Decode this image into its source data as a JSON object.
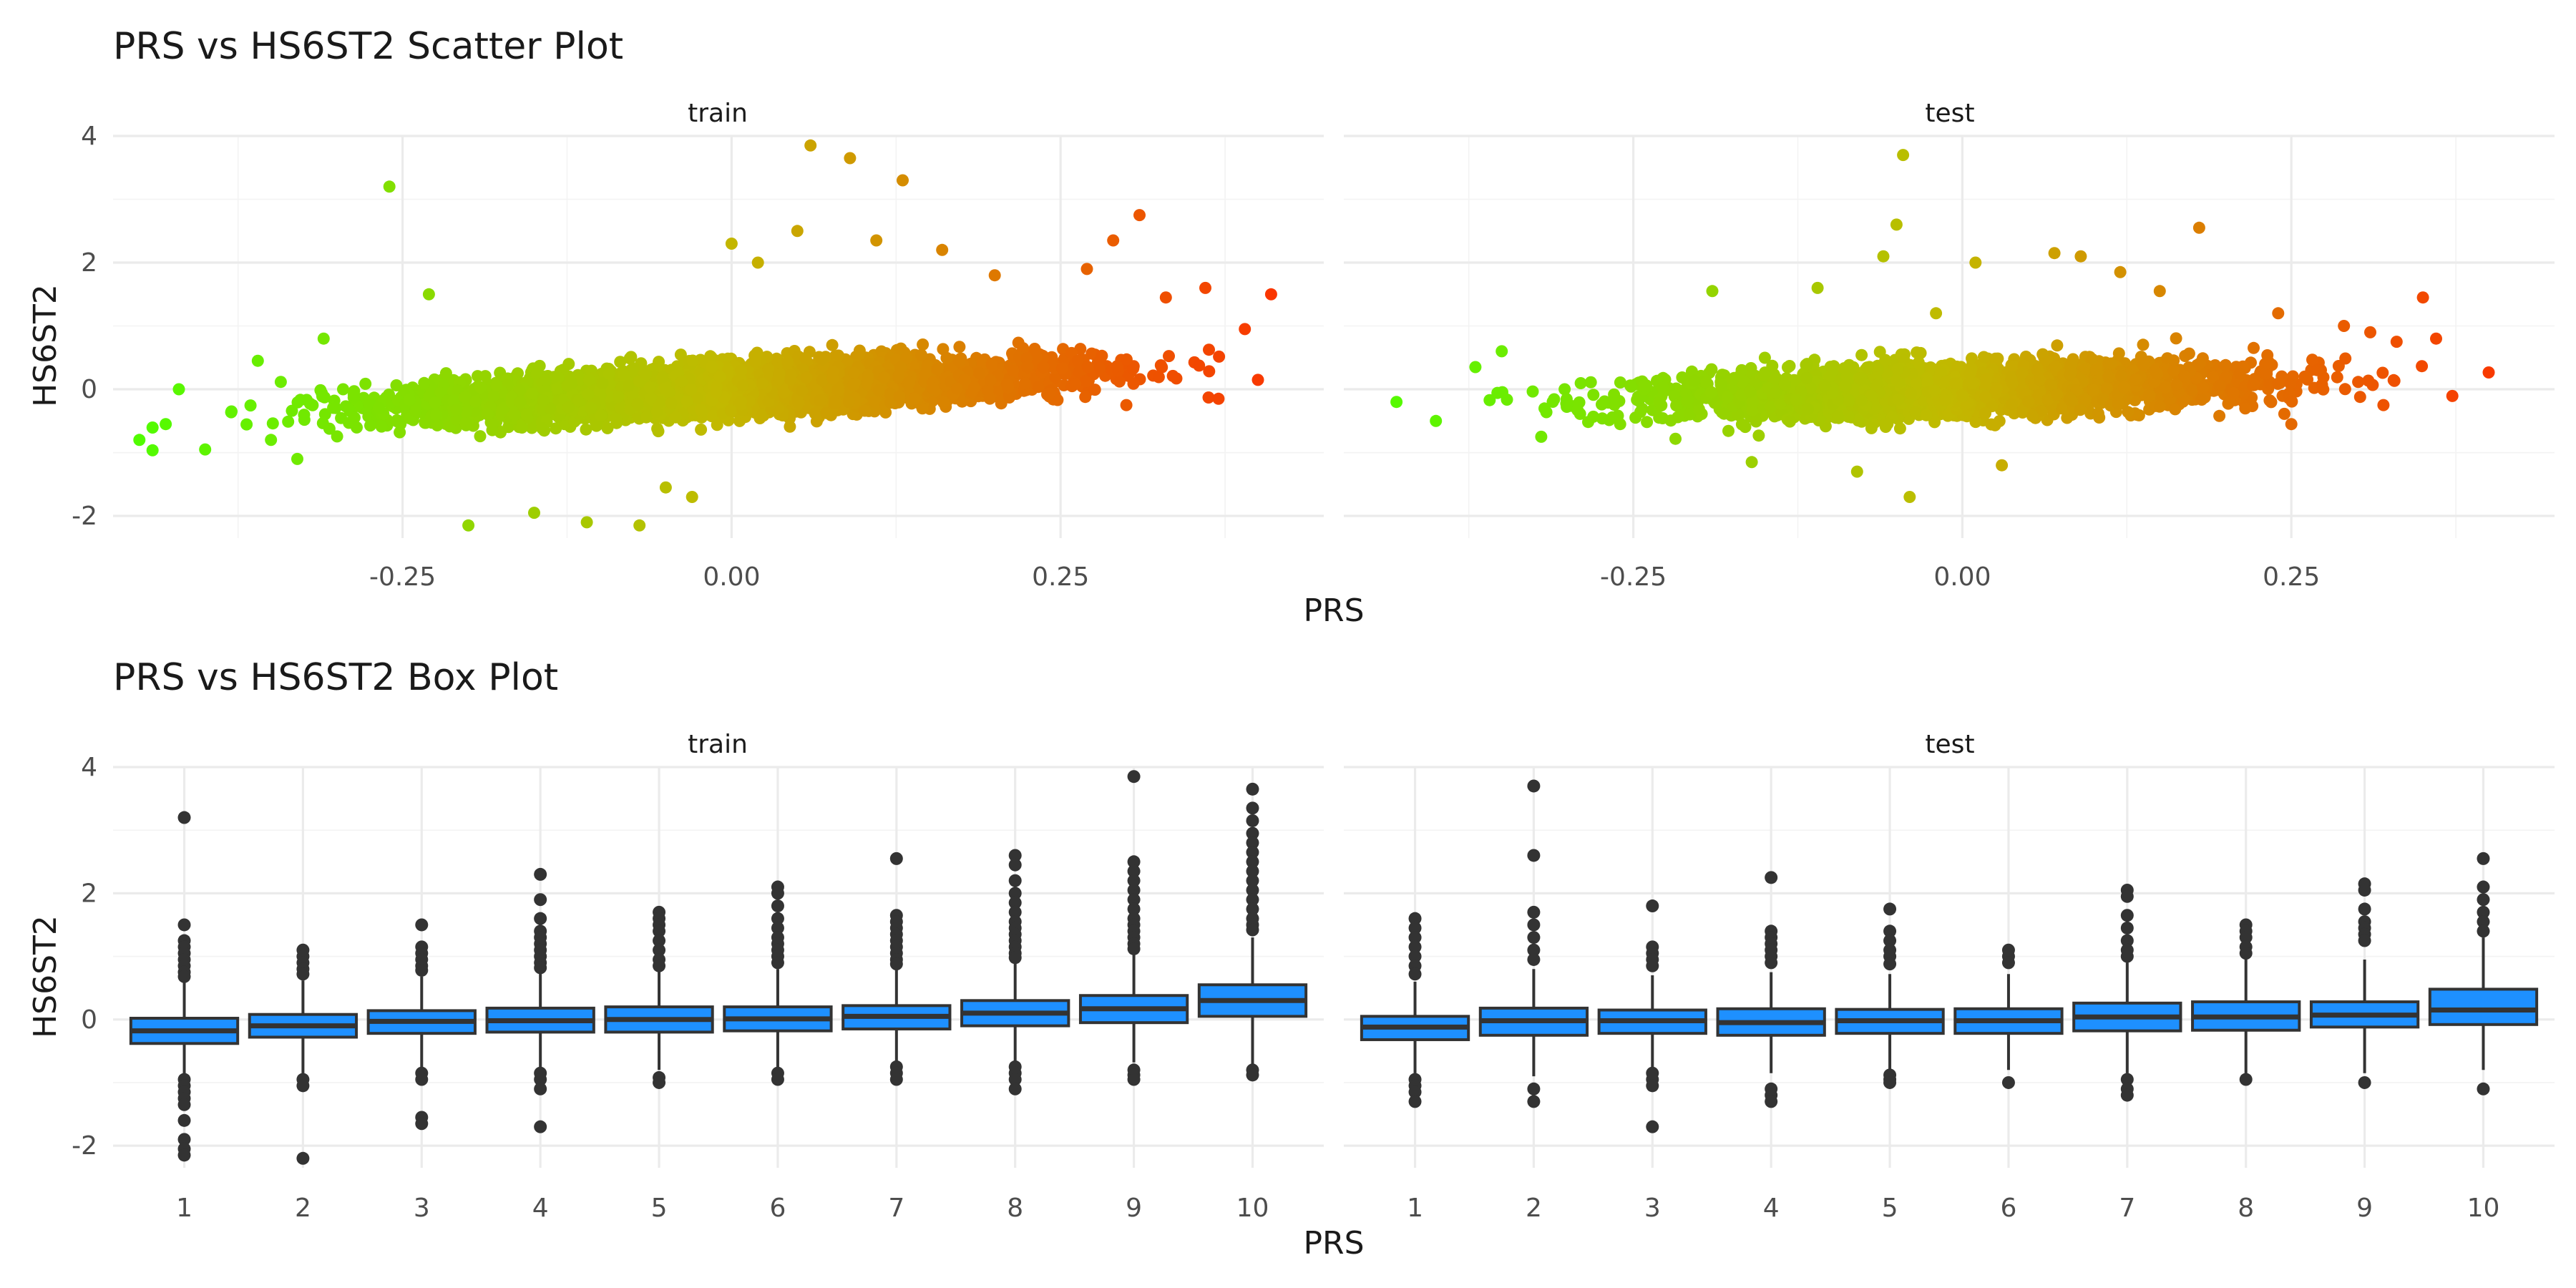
{
  "chart_data": [
    {
      "type": "scatter",
      "title": "PRS vs HS6ST2 Scatter Plot",
      "xlabel": "PRS",
      "ylabel": "HS6ST2",
      "facets": [
        "train",
        "test"
      ],
      "xlim": [
        -0.47,
        0.45
      ],
      "ylim": [
        -2.35,
        4.0
      ],
      "xticks": [
        -0.25,
        0.0,
        0.25
      ],
      "xtick_labels": [
        "-0.25",
        "0.00",
        "0.25"
      ],
      "yticks": [
        -2,
        0,
        2,
        4
      ],
      "ytick_labels": [
        "-2",
        "0",
        "2",
        "4"
      ],
      "grid": true,
      "legend": "none",
      "color_low": "#4cff00",
      "color_mid": "#c2b900",
      "color_high": "#ff2a00",
      "trend": {
        "train": {
          "slope": 2.0,
          "intercept": 0.0,
          "noise": 0.34
        },
        "test": {
          "slope": 1.3,
          "intercept": 0.0,
          "noise": 0.36
        }
      },
      "points": {
        "train": [
          [
            -0.45,
            -0.8
          ],
          [
            -0.43,
            -0.55
          ],
          [
            -0.42,
            0.0
          ],
          [
            -0.4,
            -0.95
          ],
          [
            -0.38,
            -0.35
          ],
          [
            -0.36,
            0.45
          ],
          [
            -0.35,
            -0.8
          ],
          [
            -0.33,
            -1.1
          ],
          [
            -0.31,
            0.8
          ],
          [
            -0.26,
            3.2
          ],
          [
            -0.23,
            1.5
          ],
          [
            -0.2,
            -2.15
          ],
          [
            -0.15,
            -1.95
          ],
          [
            -0.11,
            -2.1
          ],
          [
            -0.07,
            -2.15
          ],
          [
            -0.05,
            -1.55
          ],
          [
            -0.03,
            -1.7
          ],
          [
            0.0,
            2.3
          ],
          [
            0.02,
            2.0
          ],
          [
            0.05,
            2.5
          ],
          [
            0.06,
            3.85
          ],
          [
            0.09,
            3.65
          ],
          [
            0.11,
            2.35
          ],
          [
            0.13,
            3.3
          ],
          [
            0.16,
            2.2
          ],
          [
            0.2,
            1.8
          ],
          [
            0.27,
            1.9
          ],
          [
            0.29,
            2.35
          ],
          [
            0.31,
            2.75
          ],
          [
            0.33,
            1.45
          ],
          [
            0.36,
            1.6
          ],
          [
            0.39,
            0.95
          ],
          [
            0.41,
            1.5
          ],
          [
            0.3,
            -0.25
          ],
          [
            0.37,
            -0.15
          ]
        ],
        "test": [
          [
            -0.43,
            -0.2
          ],
          [
            -0.4,
            -0.5
          ],
          [
            -0.37,
            0.35
          ],
          [
            -0.35,
            0.6
          ],
          [
            -0.32,
            -0.75
          ],
          [
            -0.26,
            -0.55
          ],
          [
            -0.23,
            -0.2
          ],
          [
            -0.19,
            1.55
          ],
          [
            -0.16,
            -1.15
          ],
          [
            -0.11,
            1.6
          ],
          [
            -0.08,
            -1.3
          ],
          [
            -0.06,
            2.1
          ],
          [
            -0.05,
            2.6
          ],
          [
            -0.045,
            3.7
          ],
          [
            -0.04,
            -1.7
          ],
          [
            -0.02,
            1.2
          ],
          [
            0.01,
            2.0
          ],
          [
            0.03,
            -1.2
          ],
          [
            0.07,
            2.15
          ],
          [
            0.09,
            2.1
          ],
          [
            0.12,
            1.85
          ],
          [
            0.15,
            1.55
          ],
          [
            0.18,
            2.55
          ],
          [
            0.24,
            1.2
          ],
          [
            0.29,
            1.0
          ],
          [
            0.31,
            0.9
          ],
          [
            0.33,
            0.75
          ],
          [
            0.35,
            1.45
          ],
          [
            0.36,
            0.8
          ],
          [
            0.32,
            -0.25
          ],
          [
            0.25,
            -0.55
          ]
        ]
      }
    },
    {
      "type": "box",
      "title": "PRS vs HS6ST2 Box Plot",
      "xlabel": "PRS",
      "ylabel": "HS6ST2",
      "facets": [
        "train",
        "test"
      ],
      "categories": [
        "1",
        "2",
        "3",
        "4",
        "5",
        "6",
        "7",
        "8",
        "9",
        "10"
      ],
      "ylim": [
        -2.35,
        4.0
      ],
      "yticks": [
        -2,
        0,
        2,
        4
      ],
      "ytick_labels": [
        "-2",
        "0",
        "2",
        "4"
      ],
      "grid": true,
      "legend": "none",
      "box_color": "#1e90ff",
      "boxes": {
        "train": [
          {
            "q1": -0.38,
            "median": -0.18,
            "q3": 0.02,
            "whisker_low": -0.88,
            "whisker_high": 0.6,
            "outliers": [
              3.2,
              1.5,
              1.25,
              1.15,
              1.05,
              0.95,
              0.85,
              0.75,
              0.68,
              -0.95,
              -1.05,
              -1.15,
              -1.25,
              -1.35,
              -1.6,
              -1.9,
              -2.05,
              -2.15
            ]
          },
          {
            "q1": -0.28,
            "median": -0.1,
            "q3": 0.08,
            "whisker_low": -0.85,
            "whisker_high": 0.62,
            "outliers": [
              1.1,
              1.0,
              0.9,
              0.8,
              0.72,
              -0.95,
              -1.05,
              -2.2
            ]
          },
          {
            "q1": -0.22,
            "median": -0.03,
            "q3": 0.14,
            "whisker_low": -0.78,
            "whisker_high": 0.68,
            "outliers": [
              1.5,
              1.15,
              1.05,
              0.95,
              0.85,
              0.78,
              -0.85,
              -0.95,
              -1.55,
              -1.65
            ]
          },
          {
            "q1": -0.2,
            "median": -0.02,
            "q3": 0.18,
            "whisker_low": -0.78,
            "whisker_high": 0.75,
            "outliers": [
              2.3,
              1.9,
              1.6,
              1.4,
              1.3,
              1.2,
              1.1,
              1.0,
              0.9,
              0.82,
              -0.85,
              -0.95,
              -1.1,
              -1.7
            ]
          },
          {
            "q1": -0.2,
            "median": 0.0,
            "q3": 0.2,
            "whisker_low": -0.8,
            "whisker_high": 0.78,
            "outliers": [
              1.7,
              1.6,
              1.5,
              1.4,
              1.25,
              1.1,
              0.95,
              0.85,
              -0.92,
              -1.0
            ]
          },
          {
            "q1": -0.18,
            "median": 0.01,
            "q3": 0.2,
            "whisker_low": -0.78,
            "whisker_high": 0.8,
            "outliers": [
              2.1,
              2.0,
              1.8,
              1.6,
              1.45,
              1.3,
              1.2,
              1.1,
              1.0,
              0.9,
              -0.85,
              -0.95
            ]
          },
          {
            "q1": -0.15,
            "median": 0.05,
            "q3": 0.22,
            "whisker_low": -0.7,
            "whisker_high": 0.8,
            "outliers": [
              2.55,
              1.65,
              1.55,
              1.45,
              1.35,
              1.25,
              1.15,
              1.05,
              0.95,
              0.88,
              -0.75,
              -0.85,
              -0.95
            ]
          },
          {
            "q1": -0.1,
            "median": 0.1,
            "q3": 0.3,
            "whisker_low": -0.7,
            "whisker_high": 0.9,
            "outliers": [
              2.6,
              2.45,
              2.2,
              2.0,
              1.85,
              1.7,
              1.55,
              1.45,
              1.35,
              1.25,
              1.15,
              1.05,
              0.98,
              -0.75,
              -0.85,
              -0.95,
              -1.1
            ]
          },
          {
            "q1": -0.05,
            "median": 0.17,
            "q3": 0.38,
            "whisker_low": -0.68,
            "whisker_high": 1.05,
            "outliers": [
              3.85,
              2.5,
              2.35,
              2.2,
              2.05,
              1.9,
              1.75,
              1.6,
              1.5,
              1.4,
              1.3,
              1.2,
              1.12,
              -0.8,
              -0.88,
              -0.95
            ]
          },
          {
            "q1": 0.05,
            "median": 0.3,
            "q3": 0.55,
            "whisker_low": -0.7,
            "whisker_high": 1.3,
            "outliers": [
              3.65,
              3.35,
              3.15,
              2.95,
              2.8,
              2.65,
              2.5,
              2.35,
              2.2,
              2.05,
              1.9,
              1.75,
              1.6,
              1.5,
              1.42,
              -0.8,
              -0.88
            ]
          }
        ],
        "test": [
          {
            "q1": -0.32,
            "median": -0.12,
            "q3": 0.05,
            "whisker_low": -0.85,
            "whisker_high": 0.6,
            "outliers": [
              1.6,
              1.45,
              1.3,
              1.15,
              1.0,
              0.85,
              0.72,
              -0.95,
              -1.05,
              -1.15,
              -1.3
            ]
          },
          {
            "q1": -0.25,
            "median": -0.02,
            "q3": 0.18,
            "whisker_low": -0.9,
            "whisker_high": 0.8,
            "outliers": [
              3.7,
              2.6,
              1.7,
              1.5,
              1.3,
              1.1,
              0.95,
              -1.1,
              -1.3
            ]
          },
          {
            "q1": -0.22,
            "median": -0.02,
            "q3": 0.15,
            "whisker_low": -0.8,
            "whisker_high": 0.7,
            "outliers": [
              1.8,
              1.15,
              1.05,
              0.95,
              0.85,
              -0.85,
              -0.95,
              -1.05,
              -1.7
            ]
          },
          {
            "q1": -0.25,
            "median": -0.05,
            "q3": 0.17,
            "whisker_low": -0.85,
            "whisker_high": 0.75,
            "outliers": [
              2.25,
              1.4,
              1.3,
              1.2,
              1.1,
              1.0,
              0.9,
              -1.1,
              -1.2,
              -1.3
            ]
          },
          {
            "q1": -0.22,
            "median": -0.02,
            "q3": 0.16,
            "whisker_low": -0.8,
            "whisker_high": 0.72,
            "outliers": [
              1.75,
              1.4,
              1.25,
              1.1,
              1.0,
              0.88,
              -0.88,
              -0.95,
              -1.0
            ]
          },
          {
            "q1": -0.22,
            "median": -0.02,
            "q3": 0.17,
            "whisker_low": -0.8,
            "whisker_high": 0.72,
            "outliers": [
              1.1,
              1.0,
              0.9,
              -1.0
            ]
          },
          {
            "q1": -0.18,
            "median": 0.04,
            "q3": 0.26,
            "whisker_low": -0.85,
            "whisker_high": 0.9,
            "outliers": [
              2.05,
              1.95,
              1.65,
              1.45,
              1.25,
              1.1,
              1.0,
              -0.95,
              -1.1,
              -1.2
            ]
          },
          {
            "q1": -0.17,
            "median": 0.04,
            "q3": 0.28,
            "whisker_low": -0.85,
            "whisker_high": 0.95,
            "outliers": [
              1.5,
              1.4,
              1.3,
              1.15,
              1.05,
              -0.95
            ]
          },
          {
            "q1": -0.12,
            "median": 0.07,
            "q3": 0.28,
            "whisker_low": -0.85,
            "whisker_high": 0.95,
            "outliers": [
              2.15,
              2.05,
              1.75,
              1.55,
              1.45,
              1.35,
              1.25,
              -1.0
            ]
          },
          {
            "q1": -0.08,
            "median": 0.15,
            "q3": 0.48,
            "whisker_low": -0.8,
            "whisker_high": 1.3,
            "outliers": [
              2.55,
              2.1,
              1.9,
              1.7,
              1.55,
              1.4,
              -1.1
            ]
          }
        ]
      }
    }
  ]
}
